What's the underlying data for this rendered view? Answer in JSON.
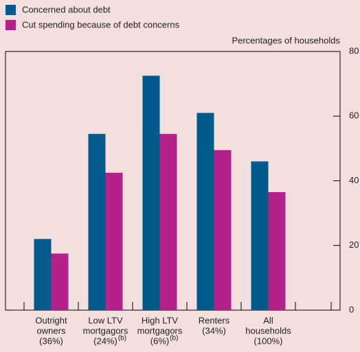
{
  "chart_data": {
    "type": "bar",
    "y_label": "Percentages of households",
    "categories": [
      [
        "Outright",
        "owners",
        "(36%)"
      ],
      [
        "Low LTV",
        "mortgagors",
        "(24%)"
      ],
      [
        "High LTV",
        "mortgagors",
        "(6%)"
      ],
      [
        "Renters",
        "(34%)"
      ],
      [
        "All",
        "households",
        "(100%)"
      ]
    ],
    "category_notes": [
      null,
      "(b)",
      "(b)",
      null,
      null
    ],
    "series": [
      {
        "name": "Concerned about debt",
        "color": "#005a8c",
        "values": [
          22,
          54.5,
          72.5,
          61,
          46
        ]
      },
      {
        "name": "Cut spending because of debt concerns",
        "color": "#b5218a",
        "values": [
          17.5,
          42.5,
          54.5,
          49.5,
          36.5
        ]
      }
    ],
    "ylim": [
      0,
      80
    ],
    "yticks": [
      0,
      20,
      40,
      60,
      80
    ],
    "y_axis_side": "right"
  }
}
